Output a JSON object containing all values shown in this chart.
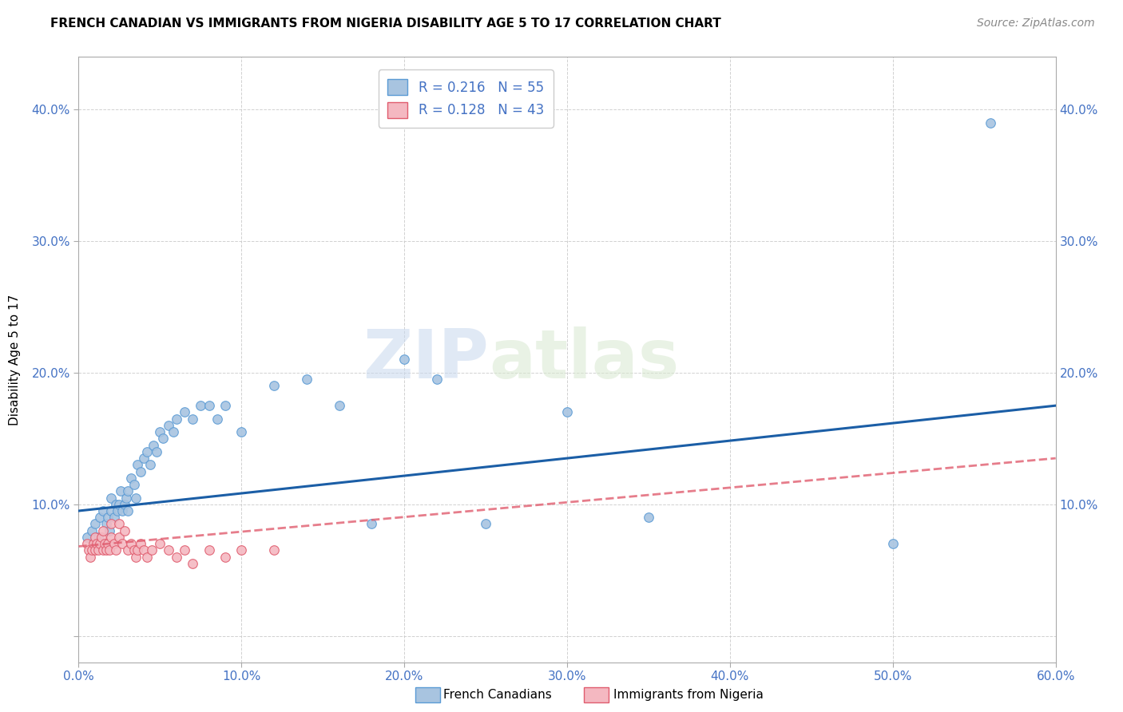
{
  "title": "FRENCH CANADIAN VS IMMIGRANTS FROM NIGERIA DISABILITY AGE 5 TO 17 CORRELATION CHART",
  "source": "Source: ZipAtlas.com",
  "ylabel": "Disability Age 5 to 17",
  "xlim": [
    0.0,
    0.6
  ],
  "ylim": [
    -0.02,
    0.44
  ],
  "xticks": [
    0.0,
    0.1,
    0.2,
    0.3,
    0.4,
    0.5,
    0.6
  ],
  "yticks": [
    0.0,
    0.1,
    0.2,
    0.3,
    0.4
  ],
  "background_color": "#ffffff",
  "grid_color": "#cccccc",
  "watermark_line1": "ZIP",
  "watermark_line2": "atlas",
  "french_canadians": {
    "x": [
      0.005,
      0.008,
      0.01,
      0.012,
      0.013,
      0.015,
      0.015,
      0.017,
      0.018,
      0.019,
      0.02,
      0.02,
      0.022,
      0.023,
      0.024,
      0.025,
      0.026,
      0.027,
      0.028,
      0.029,
      0.03,
      0.03,
      0.032,
      0.034,
      0.035,
      0.036,
      0.038,
      0.04,
      0.042,
      0.044,
      0.046,
      0.048,
      0.05,
      0.052,
      0.055,
      0.058,
      0.06,
      0.065,
      0.07,
      0.075,
      0.08,
      0.085,
      0.09,
      0.1,
      0.12,
      0.14,
      0.16,
      0.18,
      0.2,
      0.22,
      0.25,
      0.3,
      0.35,
      0.5,
      0.56
    ],
    "y": [
      0.075,
      0.08,
      0.085,
      0.075,
      0.09,
      0.07,
      0.095,
      0.085,
      0.09,
      0.08,
      0.095,
      0.105,
      0.09,
      0.1,
      0.095,
      0.1,
      0.11,
      0.095,
      0.1,
      0.105,
      0.11,
      0.095,
      0.12,
      0.115,
      0.105,
      0.13,
      0.125,
      0.135,
      0.14,
      0.13,
      0.145,
      0.14,
      0.155,
      0.15,
      0.16,
      0.155,
      0.165,
      0.17,
      0.165,
      0.175,
      0.175,
      0.165,
      0.175,
      0.155,
      0.19,
      0.195,
      0.175,
      0.085,
      0.21,
      0.195,
      0.085,
      0.17,
      0.09,
      0.07,
      0.39
    ],
    "color": "#a8c4e0",
    "edge_color": "#5b9bd5",
    "R": 0.216,
    "N": 55,
    "line_color": "#1b5ea6",
    "trend_x0": 0.0,
    "trend_y0": 0.095,
    "trend_x1": 0.6,
    "trend_y1": 0.175
  },
  "nigeria": {
    "x": [
      0.005,
      0.006,
      0.007,
      0.008,
      0.009,
      0.01,
      0.01,
      0.011,
      0.012,
      0.013,
      0.014,
      0.015,
      0.015,
      0.016,
      0.017,
      0.018,
      0.019,
      0.02,
      0.02,
      0.022,
      0.023,
      0.025,
      0.025,
      0.027,
      0.028,
      0.03,
      0.032,
      0.034,
      0.035,
      0.036,
      0.038,
      0.04,
      0.042,
      0.045,
      0.05,
      0.055,
      0.06,
      0.065,
      0.07,
      0.08,
      0.09,
      0.1,
      0.12
    ],
    "y": [
      0.07,
      0.065,
      0.06,
      0.065,
      0.07,
      0.065,
      0.075,
      0.07,
      0.065,
      0.07,
      0.075,
      0.065,
      0.08,
      0.07,
      0.065,
      0.07,
      0.065,
      0.075,
      0.085,
      0.07,
      0.065,
      0.075,
      0.085,
      0.07,
      0.08,
      0.065,
      0.07,
      0.065,
      0.06,
      0.065,
      0.07,
      0.065,
      0.06,
      0.065,
      0.07,
      0.065,
      0.06,
      0.065,
      0.055,
      0.065,
      0.06,
      0.065,
      0.065
    ],
    "color": "#f4b8c1",
    "edge_color": "#e05c6e",
    "R": 0.128,
    "N": 43,
    "line_color": "#e05c6e",
    "trend_x0": 0.0,
    "trend_y0": 0.068,
    "trend_x1": 0.6,
    "trend_y1": 0.135
  },
  "legend_labels": [
    "French Canadians",
    "Immigrants from Nigeria"
  ],
  "tick_color": "#4472c4",
  "tick_fontsize": 11,
  "title_fontsize": 11,
  "source_fontsize": 10,
  "ylabel_fontsize": 11
}
